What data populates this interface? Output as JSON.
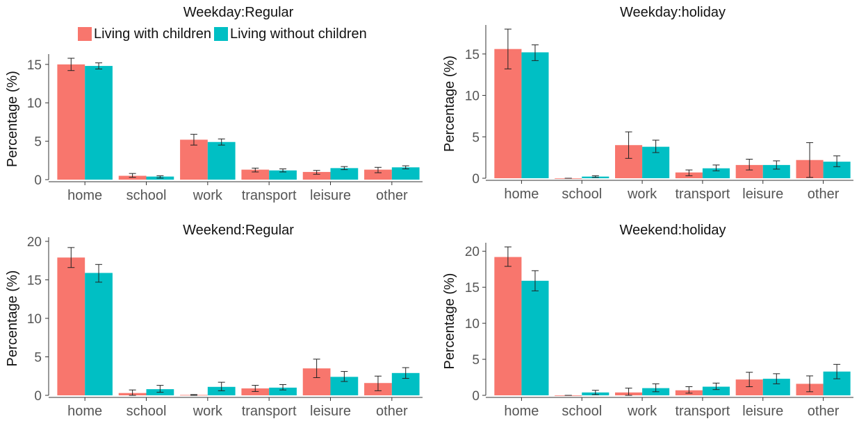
{
  "legend": {
    "with_label": "Living with children",
    "without_label": "Living without children"
  },
  "colors": {
    "with": "#F8766D",
    "without": "#00BFC4",
    "axis": "#333333",
    "tick": "#555555"
  },
  "chart_data": [
    {
      "type": "bar",
      "title": "Weekday:Regular",
      "xlabel": "",
      "ylabel": "Percentage (%)",
      "categories": [
        "home",
        "school",
        "work",
        "transport",
        "leisure",
        "other"
      ],
      "yticks": [
        0,
        5,
        10,
        15
      ],
      "ylim": [
        0,
        15.8
      ],
      "series": [
        {
          "name": "Living with children",
          "values": [
            15.0,
            0.5,
            5.2,
            1.3,
            1.0,
            1.3
          ],
          "err_low": [
            14.2,
            0.3,
            4.5,
            1.0,
            0.7,
            0.9
          ],
          "err_high": [
            15.8,
            0.8,
            5.9,
            1.5,
            1.2,
            1.6
          ]
        },
        {
          "name": "Living without children",
          "values": [
            14.8,
            0.4,
            4.9,
            1.2,
            1.5,
            1.6
          ],
          "err_low": [
            14.4,
            0.2,
            4.5,
            1.0,
            1.3,
            1.4
          ],
          "err_high": [
            15.2,
            0.5,
            5.3,
            1.4,
            1.7,
            1.8
          ]
        }
      ],
      "grid": false,
      "legend": "top"
    },
    {
      "type": "bar",
      "title": "Weekday:holiday",
      "xlabel": "",
      "ylabel": "Percentage (%)",
      "categories": [
        "home",
        "school",
        "work",
        "transport",
        "leisure",
        "other"
      ],
      "yticks": [
        0,
        5,
        10,
        15
      ],
      "ylim": [
        0,
        18.0
      ],
      "series": [
        {
          "name": "Living with children",
          "values": [
            15.6,
            0.0,
            4.0,
            0.7,
            1.6,
            2.2
          ],
          "err_low": [
            13.2,
            0.0,
            2.4,
            0.3,
            1.0,
            0.1
          ],
          "err_high": [
            18.0,
            0.0,
            5.6,
            1.0,
            2.3,
            4.3
          ]
        },
        {
          "name": "Living without children",
          "values": [
            15.2,
            0.2,
            3.8,
            1.2,
            1.6,
            2.0
          ],
          "err_low": [
            14.2,
            0.1,
            3.1,
            0.9,
            1.1,
            1.4
          ],
          "err_high": [
            16.1,
            0.3,
            4.6,
            1.6,
            2.1,
            2.7
          ]
        }
      ],
      "grid": false,
      "legend": "none"
    },
    {
      "type": "bar",
      "title": "Weekend:Regular",
      "xlabel": "",
      "ylabel": "Percentage (%)",
      "categories": [
        "home",
        "school",
        "work",
        "transport",
        "leisure",
        "other"
      ],
      "yticks": [
        0,
        5,
        10,
        15,
        20
      ],
      "ylim": [
        0,
        20.0
      ],
      "series": [
        {
          "name": "Living with children",
          "values": [
            17.9,
            0.3,
            0.05,
            0.9,
            3.5,
            1.6
          ],
          "err_low": [
            16.6,
            0.0,
            0.0,
            0.5,
            2.3,
            0.6
          ],
          "err_high": [
            19.2,
            0.7,
            0.1,
            1.3,
            4.7,
            2.5
          ]
        },
        {
          "name": "Living without children",
          "values": [
            15.9,
            0.8,
            1.1,
            1.0,
            2.4,
            2.9
          ],
          "err_low": [
            14.7,
            0.4,
            0.6,
            0.7,
            1.8,
            2.2
          ],
          "err_high": [
            17.0,
            1.3,
            1.7,
            1.4,
            3.1,
            3.6
          ]
        }
      ],
      "grid": false,
      "legend": "none"
    },
    {
      "type": "bar",
      "title": "Weekend:holiday",
      "xlabel": "",
      "ylabel": "Percentage (%)",
      "categories": [
        "home",
        "school",
        "work",
        "transport",
        "leisure",
        "other"
      ],
      "yticks": [
        0,
        5,
        10,
        15,
        20
      ],
      "ylim": [
        0,
        20.6
      ],
      "series": [
        {
          "name": "Living with children",
          "values": [
            19.2,
            0.0,
            0.4,
            0.7,
            2.2,
            1.6
          ],
          "err_low": [
            17.9,
            0.0,
            0.0,
            0.3,
            1.2,
            0.5
          ],
          "err_high": [
            20.6,
            0.0,
            1.0,
            1.2,
            3.2,
            2.7
          ]
        },
        {
          "name": "Living without children",
          "values": [
            15.9,
            0.4,
            1.0,
            1.2,
            2.3,
            3.3
          ],
          "err_low": [
            14.5,
            0.1,
            0.5,
            0.8,
            1.6,
            2.3
          ],
          "err_high": [
            17.3,
            0.7,
            1.6,
            1.7,
            3.0,
            4.3
          ]
        }
      ],
      "grid": false,
      "legend": "none"
    }
  ]
}
